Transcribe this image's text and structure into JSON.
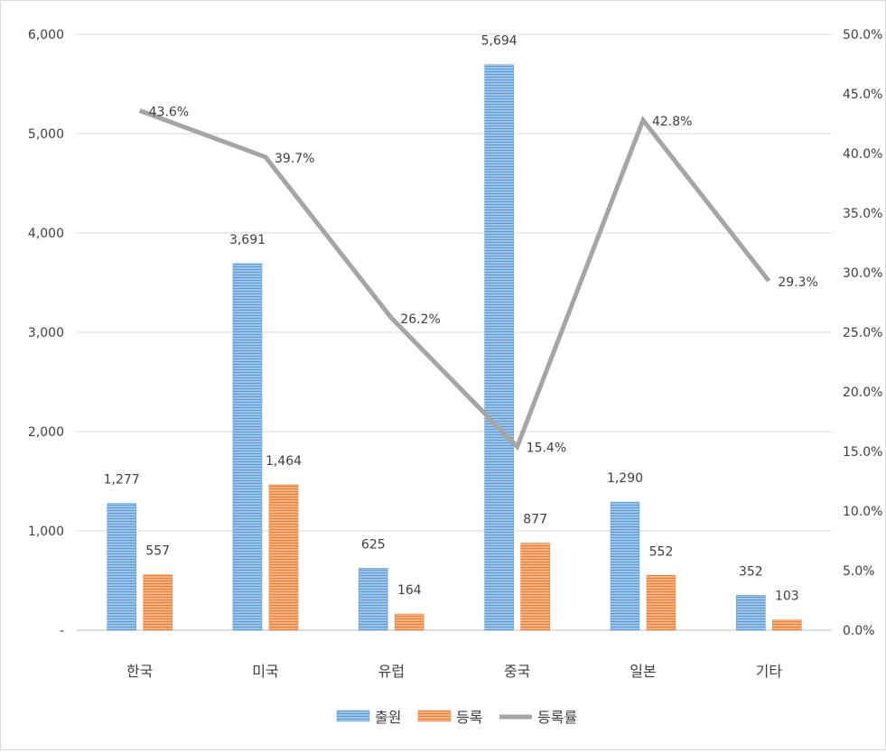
{
  "chart_data": {
    "type": "bar",
    "categories": [
      "한국",
      "미국",
      "유럽",
      "중국",
      "일본",
      "기타"
    ],
    "series": [
      {
        "name": "출원",
        "type": "bar",
        "axis": "left",
        "color": "#5B9BD5",
        "values": [
          1277,
          3691,
          625,
          5694,
          1290,
          352
        ],
        "labels": [
          "1,277",
          "3,691",
          "625",
          "5,694",
          "1,290",
          "352"
        ]
      },
      {
        "name": "등록",
        "type": "bar",
        "axis": "left",
        "color": "#ED7D31",
        "values": [
          557,
          1464,
          164,
          877,
          552,
          103
        ],
        "labels": [
          "557",
          "1,464",
          "164",
          "877",
          "552",
          "103"
        ]
      },
      {
        "name": "등록률",
        "type": "line",
        "axis": "right",
        "color": "#A5A5A5",
        "values": [
          43.6,
          39.7,
          26.2,
          15.4,
          42.8,
          29.3
        ],
        "labels": [
          "43.6%",
          "39.7%",
          "26.2%",
          "15.4%",
          "42.8%",
          "29.3%"
        ]
      }
    ],
    "y_left": {
      "ylim": [
        0,
        6000
      ],
      "ticks": [
        "-",
        "1,000",
        "2,000",
        "3,000",
        "4,000",
        "5,000",
        "6,000"
      ]
    },
    "y_right": {
      "ylim": [
        0,
        50
      ],
      "ticks": [
        "0.0%",
        "5.0%",
        "10.0%",
        "15.0%",
        "20.0%",
        "25.0%",
        "30.0%",
        "35.0%",
        "40.0%",
        "45.0%",
        "50.0%"
      ]
    },
    "grid": true,
    "legend_position": "bottom"
  }
}
